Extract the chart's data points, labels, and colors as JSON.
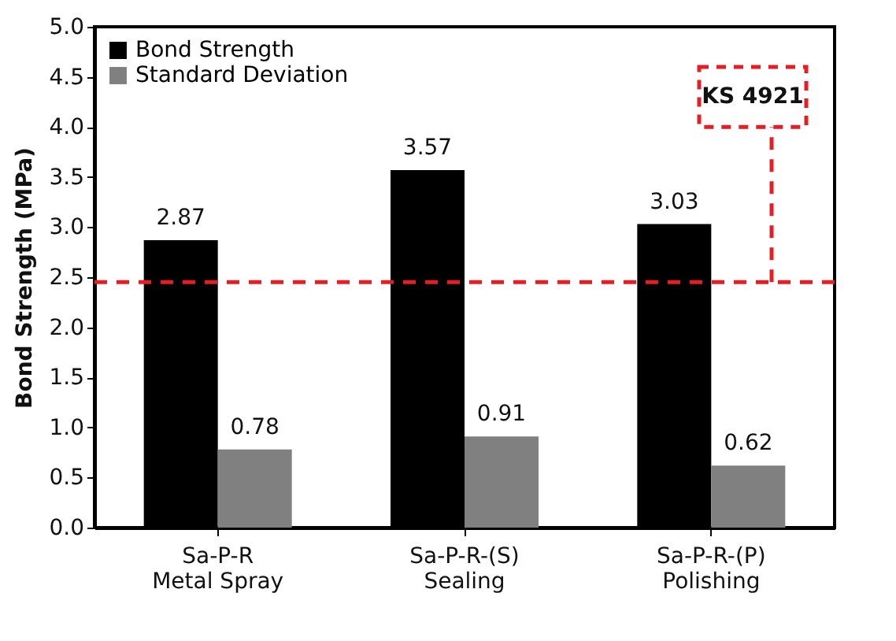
{
  "chart_data": {
    "type": "bar",
    "ylabel": "Bond Strength (MPa)",
    "categories": [
      "Sa-P-R\nMetal Spray",
      "Sa-P-R-(S)\nSealing",
      "Sa-P-R-(P)\nPolishing"
    ],
    "series": [
      {
        "name": "Bond Strength",
        "color": "#000000",
        "values": [
          2.87,
          3.57,
          3.03
        ]
      },
      {
        "name": "Standard Deviation",
        "color": "#808080",
        "values": [
          0.78,
          0.91,
          0.62
        ]
      }
    ],
    "ylim": [
      0,
      5
    ],
    "yticks": [
      {
        "value": 0,
        "label": "0.0"
      },
      {
        "value": 0.5,
        "label": "0.5"
      },
      {
        "value": 1,
        "label": "1.0"
      },
      {
        "value": 1.5,
        "label": "1.5"
      },
      {
        "value": 2,
        "label": "2.0"
      },
      {
        "value": 2.5,
        "label": "2.5"
      },
      {
        "value": 3,
        "label": "3.0"
      },
      {
        "value": 3.5,
        "label": "3.5"
      },
      {
        "value": 4,
        "label": "4.0"
      },
      {
        "value": 4.5,
        "label": "4.5"
      },
      {
        "value": 5,
        "label": "5.0"
      }
    ],
    "ref_lines": [
      {
        "axis": "y",
        "value": 2.45,
        "label": "KS 4921",
        "color": "#e31e24",
        "line_style": "dashed"
      }
    ],
    "data_labels": true,
    "legend": "top left",
    "grid": false
  }
}
